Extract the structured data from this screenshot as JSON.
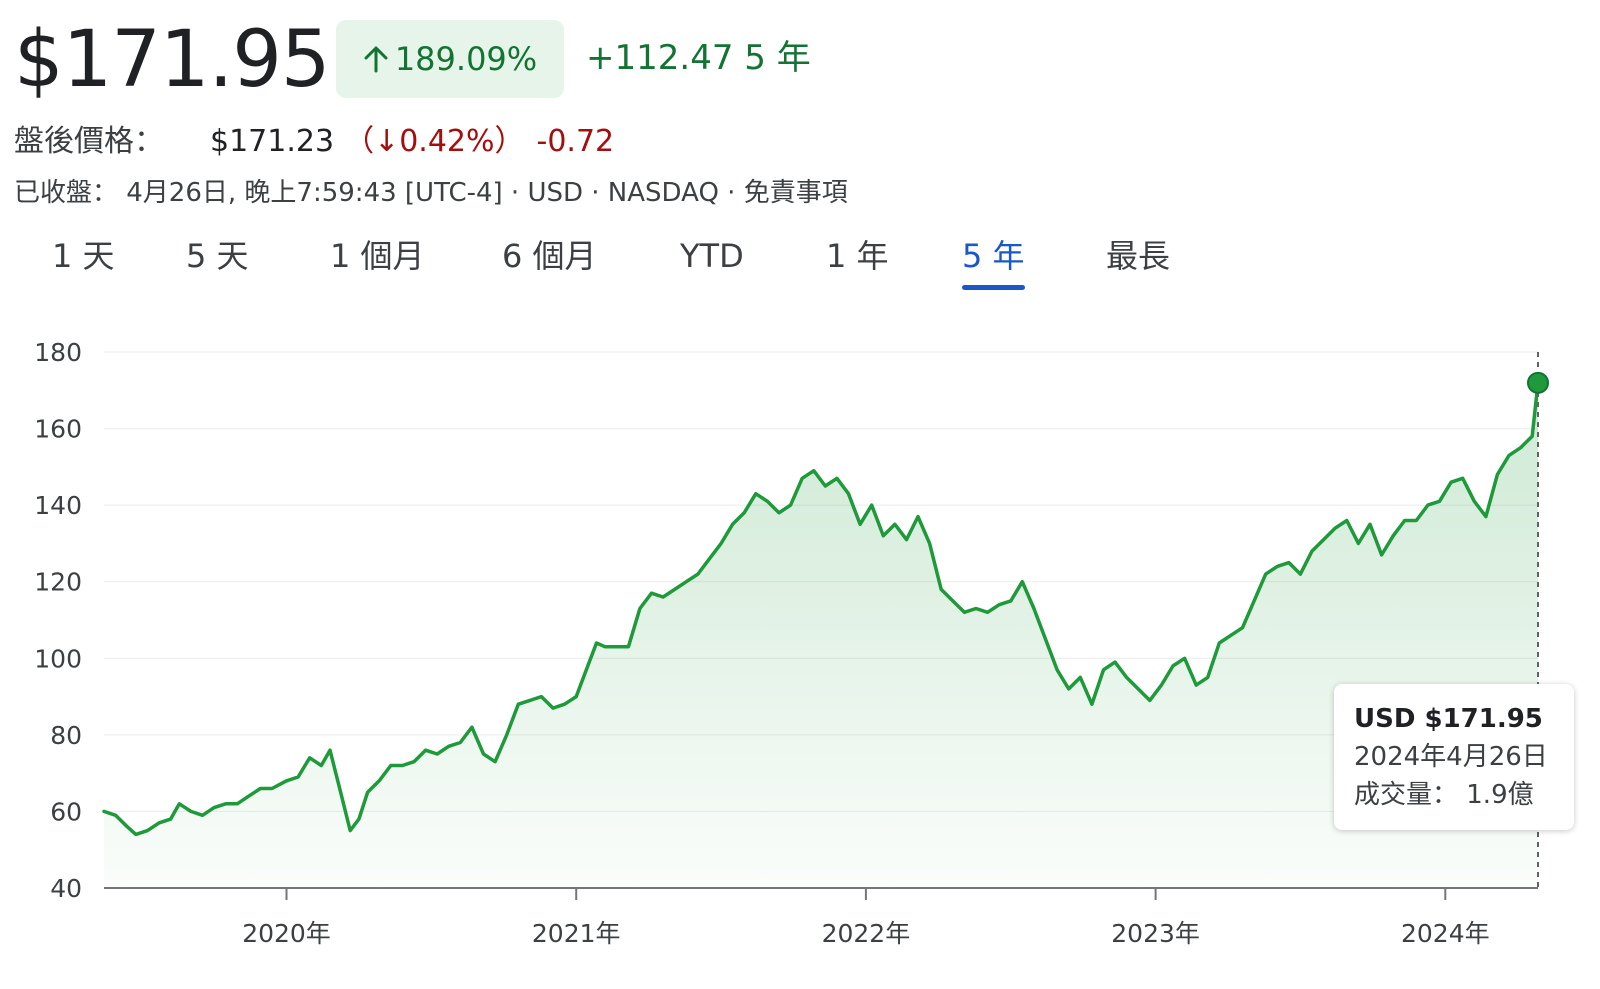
{
  "quote": {
    "price": "$171.95",
    "change_pct": "189.09%",
    "change_abs": "+112.47 5 年"
  },
  "after_hours": {
    "label": "盤後價格：",
    "price": "$171.23",
    "change_pct": "（↓0.42%）",
    "change_abs": "-0.72"
  },
  "meta": {
    "text": "已收盤： 4月26日, 晚上7:59:43 [UTC-4] · USD · NASDAQ · 免責事項"
  },
  "tabs": [
    {
      "label": "1 天"
    },
    {
      "label": "5 天"
    },
    {
      "label": "1 個月"
    },
    {
      "label": "6 個月"
    },
    {
      "label": "YTD"
    },
    {
      "label": "1 年"
    },
    {
      "label": "5 年",
      "active": true
    },
    {
      "label": "最長"
    }
  ],
  "colors": {
    "accent": "#1a57c9",
    "up": "#137333",
    "down": "#a50e0e",
    "line": "#1e9a3a"
  },
  "tooltip": {
    "price": "USD $171.95",
    "date": "2024年4月26日",
    "volume": "成交量： 1.9億"
  },
  "chart_data": {
    "type": "area",
    "ylim": [
      40,
      180
    ],
    "xlim": [
      2019.37,
      2024.32
    ],
    "yticks": [
      40,
      60,
      80,
      100,
      120,
      140,
      160,
      180
    ],
    "xticks": [
      {
        "value": 2020,
        "label": "2020年"
      },
      {
        "value": 2021,
        "label": "2021年"
      },
      {
        "value": 2022,
        "label": "2022年"
      },
      {
        "value": 2023,
        "label": "2023年"
      },
      {
        "value": 2024,
        "label": "2024年"
      }
    ],
    "grid": true,
    "series": [
      {
        "points": [
          [
            2019.37,
            60
          ],
          [
            2019.41,
            59
          ],
          [
            2019.45,
            56
          ],
          [
            2019.48,
            54
          ],
          [
            2019.52,
            55
          ],
          [
            2019.56,
            57
          ],
          [
            2019.6,
            58
          ],
          [
            2019.63,
            62
          ],
          [
            2019.67,
            60
          ],
          [
            2019.71,
            59
          ],
          [
            2019.75,
            61
          ],
          [
            2019.79,
            62
          ],
          [
            2019.83,
            62
          ],
          [
            2019.87,
            64
          ],
          [
            2019.91,
            66
          ],
          [
            2019.95,
            66
          ],
          [
            2020.0,
            68
          ],
          [
            2020.04,
            69
          ],
          [
            2020.08,
            74
          ],
          [
            2020.12,
            72
          ],
          [
            2020.15,
            76
          ],
          [
            2020.18,
            67
          ],
          [
            2020.22,
            55
          ],
          [
            2020.25,
            58
          ],
          [
            2020.28,
            65
          ],
          [
            2020.32,
            68
          ],
          [
            2020.36,
            72
          ],
          [
            2020.4,
            72
          ],
          [
            2020.44,
            73
          ],
          [
            2020.48,
            76
          ],
          [
            2020.52,
            75
          ],
          [
            2020.56,
            77
          ],
          [
            2020.6,
            78
          ],
          [
            2020.64,
            82
          ],
          [
            2020.68,
            75
          ],
          [
            2020.72,
            73
          ],
          [
            2020.76,
            80
          ],
          [
            2020.8,
            88
          ],
          [
            2020.84,
            89
          ],
          [
            2020.88,
            90
          ],
          [
            2020.92,
            87
          ],
          [
            2020.96,
            88
          ],
          [
            2021.0,
            90
          ],
          [
            2021.04,
            98
          ],
          [
            2021.07,
            104
          ],
          [
            2021.1,
            103
          ],
          [
            2021.14,
            103
          ],
          [
            2021.18,
            103
          ],
          [
            2021.22,
            113
          ],
          [
            2021.26,
            117
          ],
          [
            2021.3,
            116
          ],
          [
            2021.34,
            118
          ],
          [
            2021.38,
            120
          ],
          [
            2021.42,
            122
          ],
          [
            2021.46,
            126
          ],
          [
            2021.5,
            130
          ],
          [
            2021.54,
            135
          ],
          [
            2021.58,
            138
          ],
          [
            2021.62,
            143
          ],
          [
            2021.66,
            141
          ],
          [
            2021.7,
            138
          ],
          [
            2021.74,
            140
          ],
          [
            2021.78,
            147
          ],
          [
            2021.82,
            149
          ],
          [
            2021.86,
            145
          ],
          [
            2021.9,
            147
          ],
          [
            2021.94,
            143
          ],
          [
            2021.98,
            135
          ],
          [
            2022.02,
            140
          ],
          [
            2022.06,
            132
          ],
          [
            2022.1,
            135
          ],
          [
            2022.14,
            131
          ],
          [
            2022.18,
            137
          ],
          [
            2022.22,
            130
          ],
          [
            2022.26,
            118
          ],
          [
            2022.3,
            115
          ],
          [
            2022.34,
            112
          ],
          [
            2022.38,
            113
          ],
          [
            2022.42,
            112
          ],
          [
            2022.46,
            114
          ],
          [
            2022.5,
            115
          ],
          [
            2022.54,
            120
          ],
          [
            2022.58,
            113
          ],
          [
            2022.62,
            105
          ],
          [
            2022.66,
            97
          ],
          [
            2022.7,
            92
          ],
          [
            2022.74,
            95
          ],
          [
            2022.78,
            88
          ],
          [
            2022.82,
            97
          ],
          [
            2022.86,
            99
          ],
          [
            2022.9,
            95
          ],
          [
            2022.94,
            92
          ],
          [
            2022.98,
            89
          ],
          [
            2023.02,
            93
          ],
          [
            2023.06,
            98
          ],
          [
            2023.1,
            100
          ],
          [
            2023.14,
            93
          ],
          [
            2023.18,
            95
          ],
          [
            2023.22,
            104
          ],
          [
            2023.26,
            106
          ],
          [
            2023.3,
            108
          ],
          [
            2023.34,
            115
          ],
          [
            2023.38,
            122
          ],
          [
            2023.42,
            124
          ],
          [
            2023.46,
            125
          ],
          [
            2023.5,
            122
          ],
          [
            2023.54,
            128
          ],
          [
            2023.58,
            131
          ],
          [
            2023.62,
            134
          ],
          [
            2023.66,
            136
          ],
          [
            2023.7,
            130
          ],
          [
            2023.74,
            135
          ],
          [
            2023.78,
            127
          ],
          [
            2023.82,
            132
          ],
          [
            2023.86,
            136
          ],
          [
            2023.9,
            136
          ],
          [
            2023.94,
            140
          ],
          [
            2023.98,
            141
          ],
          [
            2024.02,
            146
          ],
          [
            2024.06,
            147
          ],
          [
            2024.1,
            141
          ],
          [
            2024.14,
            137
          ],
          [
            2024.18,
            148
          ],
          [
            2024.22,
            153
          ],
          [
            2024.26,
            155
          ],
          [
            2024.3,
            158
          ],
          [
            2024.32,
            171.95
          ]
        ]
      }
    ],
    "marker": {
      "x": 2024.32,
      "y": 171.95
    }
  }
}
